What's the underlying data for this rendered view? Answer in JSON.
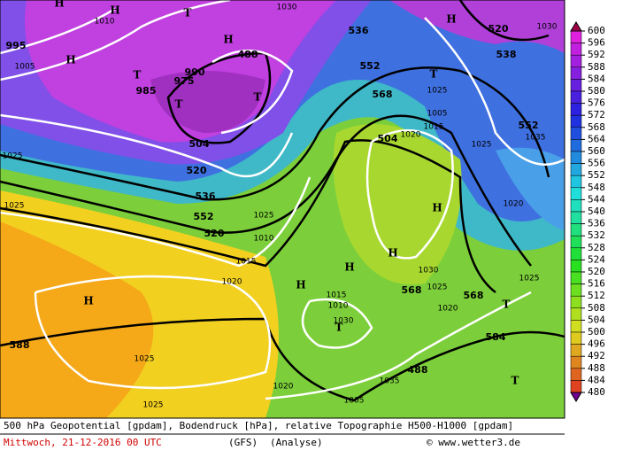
{
  "map_labels": [
    "H",
    "H",
    "H",
    "H",
    "H",
    "H",
    "H",
    "H",
    "H",
    "H",
    "T",
    "T",
    "T",
    "T",
    "T",
    "T",
    "T",
    "T",
    "488",
    "488",
    "504",
    "520",
    "536",
    "552",
    "520",
    "536",
    "552",
    "568",
    "504",
    "520",
    "538",
    "552",
    "568",
    "568",
    "584",
    "588",
    "1005",
    "1010",
    "1005",
    "995",
    "990",
    "985",
    "975",
    "1030",
    "1025",
    "1025",
    "1020",
    "1015",
    "1005",
    "1025",
    "1035",
    "1025",
    "1020",
    "1015",
    "1010",
    "1025",
    "1020",
    "1015",
    "1010",
    "1030",
    "1025",
    "1025",
    "1020",
    "1035",
    "1030",
    "1025",
    "1020",
    "1025",
    "1030"
  ],
  "colorbar": {
    "ticks": [
      600,
      596,
      592,
      588,
      584,
      580,
      576,
      572,
      568,
      564,
      560,
      556,
      552,
      548,
      544,
      540,
      536,
      532,
      528,
      524,
      520,
      516,
      512,
      508,
      504,
      500,
      496,
      492,
      488,
      484,
      480
    ]
  },
  "footer": {
    "line1": "500 hPa Geopotential [gpdam], Bodendruck [hPa], relative Topographie H500-H1000 [gpdam]",
    "date": "Mittwoch, 21-12-2016  00 UTC",
    "model": "(GFS)",
    "analysis": "(Analyse)",
    "copyright": "© www.wetter3.de"
  }
}
